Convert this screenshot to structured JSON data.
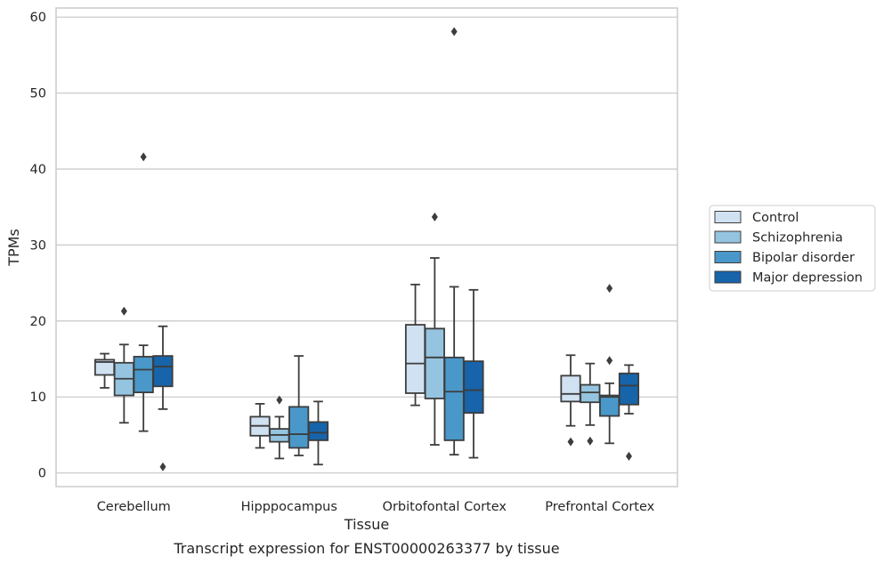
{
  "chart_data": {
    "type": "box",
    "title": "",
    "caption": "Transcript expression for ENST00000263377 by tissue",
    "xlabel": "Tissue",
    "ylabel": "TPMs",
    "ylim": [
      -1.8,
      61.2
    ],
    "yticks": [
      0,
      10,
      20,
      30,
      40,
      50,
      60
    ],
    "grid": "horizontal",
    "legend_position": "right",
    "categories": [
      "Cerebellum",
      "Hipppocampus",
      "Orbitofontal Cortex",
      "Prefrontal Cortex"
    ],
    "series": [
      {
        "name": "Control",
        "color": "#d0e1f2",
        "boxes": [
          {
            "whislo": 11.2,
            "q1": 12.9,
            "med": 14.6,
            "q3": 14.9,
            "whishi": 15.7,
            "fliers": []
          },
          {
            "whislo": 3.3,
            "q1": 4.9,
            "med": 6.2,
            "q3": 7.4,
            "whishi": 9.1,
            "fliers": []
          },
          {
            "whislo": 8.9,
            "q1": 10.5,
            "med": 14.4,
            "q3": 19.5,
            "whishi": 24.8,
            "fliers": []
          },
          {
            "whislo": 6.2,
            "q1": 9.4,
            "med": 10.4,
            "q3": 12.8,
            "whishi": 15.5,
            "fliers": [
              4.1
            ]
          }
        ]
      },
      {
        "name": "Schizophrenia",
        "color": "#94c4df",
        "boxes": [
          {
            "whislo": 6.6,
            "q1": 10.2,
            "med": 12.4,
            "q3": 14.5,
            "whishi": 16.9,
            "fliers": [
              21.3
            ]
          },
          {
            "whislo": 1.9,
            "q1": 4.1,
            "med": 5.0,
            "q3": 5.8,
            "whishi": 7.4,
            "fliers": [
              9.6
            ]
          },
          {
            "whislo": 3.7,
            "q1": 9.8,
            "med": 15.2,
            "q3": 19.0,
            "whishi": 28.3,
            "fliers": [
              33.7
            ]
          },
          {
            "whislo": 6.3,
            "q1": 9.3,
            "med": 10.6,
            "q3": 11.6,
            "whishi": 14.4,
            "fliers": [
              4.2
            ]
          }
        ]
      },
      {
        "name": "Bipolar disorder",
        "color": "#4a98c9",
        "boxes": [
          {
            "whislo": 5.5,
            "q1": 10.6,
            "med": 13.6,
            "q3": 15.3,
            "whishi": 16.8,
            "fliers": [
              41.6
            ]
          },
          {
            "whislo": 2.3,
            "q1": 3.3,
            "med": 5.1,
            "q3": 8.7,
            "whishi": 15.4,
            "fliers": []
          },
          {
            "whislo": 2.4,
            "q1": 4.3,
            "med": 10.7,
            "q3": 15.2,
            "whishi": 24.5,
            "fliers": [
              58.1
            ]
          },
          {
            "whislo": 3.9,
            "q1": 7.5,
            "med": 10.0,
            "q3": 10.2,
            "whishi": 11.8,
            "fliers": [
              14.8,
              24.3
            ]
          }
        ]
      },
      {
        "name": "Major depression",
        "color": "#1764ab",
        "boxes": [
          {
            "whislo": 8.4,
            "q1": 11.4,
            "med": 14.0,
            "q3": 15.4,
            "whishi": 19.3,
            "fliers": [
              0.8
            ]
          },
          {
            "whislo": 1.1,
            "q1": 4.3,
            "med": 5.3,
            "q3": 6.7,
            "whishi": 9.4,
            "fliers": []
          },
          {
            "whislo": 2.0,
            "q1": 7.9,
            "med": 10.9,
            "q3": 14.7,
            "whishi": 24.1,
            "fliers": []
          },
          {
            "whislo": 7.8,
            "q1": 9.0,
            "med": 11.5,
            "q3": 13.1,
            "whishi": 14.2,
            "fliers": [
              2.2
            ]
          }
        ]
      }
    ]
  }
}
